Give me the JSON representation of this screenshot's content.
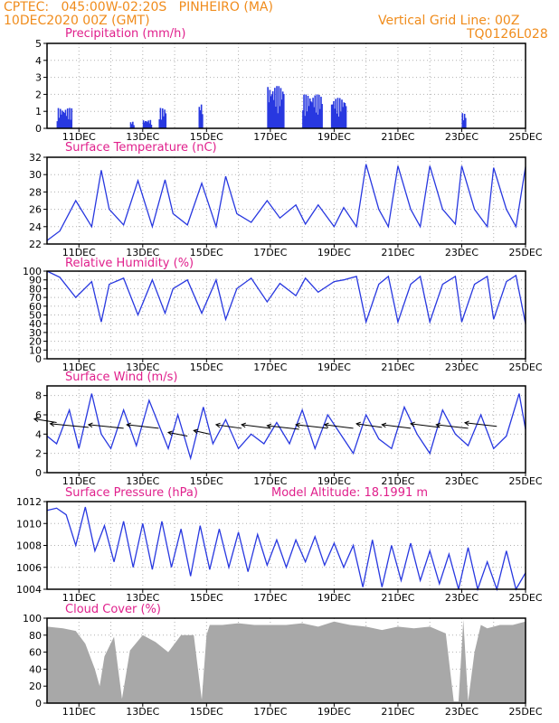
{
  "header": {
    "line1": "CPTEC:   045:00W-02:20S   PINHEIRO (MA)",
    "line2": "10DEC2020 00Z (GMT)",
    "right1": "Vertical Grid Line: 00Z",
    "right2": "TQ0126L028"
  },
  "colors": {
    "header": "#f08c1c",
    "title": "#e0208c",
    "series": "#2838e0",
    "cloud": "#a8a8a8",
    "grid": "#b0b0b0"
  },
  "chart_data": [
    {
      "type": "bar",
      "title": "Precipitation (mm/h)",
      "ylim": [
        0,
        5
      ],
      "yticks": [
        0,
        1,
        2,
        3,
        4,
        5
      ],
      "xticks": [
        "11DEC",
        "13DEC",
        "15DEC",
        "17DEC",
        "19DEC",
        "21DEC",
        "23DEC",
        "25DEC"
      ],
      "x_unit": "days since 10DEC2020 00Z",
      "bursts": [
        {
          "start": 0.3,
          "end": 0.75,
          "peak": 1.2
        },
        {
          "start": 2.6,
          "end": 2.7,
          "peak": 0.4
        },
        {
          "start": 3.0,
          "end": 3.25,
          "peak": 0.5
        },
        {
          "start": 3.5,
          "end": 3.7,
          "peak": 1.2
        },
        {
          "start": 4.75,
          "end": 4.85,
          "peak": 1.5
        },
        {
          "start": 6.9,
          "end": 7.4,
          "peak": 2.5
        },
        {
          "start": 8.0,
          "end": 8.6,
          "peak": 2.0
        },
        {
          "start": 8.9,
          "end": 9.35,
          "peak": 1.8
        },
        {
          "start": 13.0,
          "end": 13.1,
          "peak": 0.9
        }
      ]
    },
    {
      "type": "line",
      "title": "Surface Temperature (nC)",
      "ylim": [
        22,
        32
      ],
      "yticks": [
        22,
        24,
        26,
        28,
        30,
        32
      ],
      "xticks": [
        "11DEC",
        "13DEC",
        "15DEC",
        "17DEC",
        "19DEC",
        "21DEC",
        "23DEC",
        "25DEC"
      ],
      "x": [
        0,
        0.4,
        0.9,
        1.4,
        1.7,
        1.95,
        2.4,
        2.85,
        3.3,
        3.7,
        3.95,
        4.4,
        4.85,
        5.3,
        5.6,
        5.95,
        6.4,
        6.9,
        7.3,
        7.8,
        8.1,
        8.5,
        9.0,
        9.3,
        9.7,
        10.0,
        10.4,
        10.7,
        11.0,
        11.4,
        11.7,
        12.0,
        12.4,
        12.8,
        13.0,
        13.4,
        13.8,
        14.0,
        14.4,
        14.7,
        15.0
      ],
      "values": [
        22.4,
        23.5,
        27.0,
        24.0,
        30.5,
        26.0,
        24.2,
        29.3,
        24.0,
        29.4,
        25.5,
        24.2,
        29.0,
        24.0,
        29.8,
        25.5,
        24.5,
        27.0,
        25.0,
        26.5,
        24.3,
        26.5,
        24.0,
        26.2,
        24.0,
        31.2,
        26.0,
        24.0,
        31.0,
        26.0,
        24.0,
        31.0,
        26.0,
        24.3,
        31.0,
        26.0,
        24.0,
        30.8,
        26.0,
        24.0,
        30.9
      ]
    },
    {
      "type": "line",
      "title": "Relative Humidity (%)",
      "ylim": [
        0,
        100
      ],
      "yticks": [
        0,
        10,
        20,
        30,
        40,
        50,
        60,
        70,
        80,
        90,
        100
      ],
      "xticks": [
        "11DEC",
        "13DEC",
        "15DEC",
        "17DEC",
        "19DEC",
        "21DEC",
        "23DEC",
        "25DEC"
      ],
      "x": [
        0,
        0.4,
        0.9,
        1.4,
        1.7,
        1.95,
        2.4,
        2.85,
        3.3,
        3.7,
        3.95,
        4.4,
        4.85,
        5.3,
        5.6,
        5.95,
        6.4,
        6.9,
        7.3,
        7.8,
        8.1,
        8.5,
        9.0,
        9.3,
        9.7,
        10.0,
        10.4,
        10.7,
        11.0,
        11.4,
        11.7,
        12.0,
        12.4,
        12.8,
        13.0,
        13.4,
        13.8,
        14.0,
        14.4,
        14.7,
        15.0
      ],
      "values": [
        100,
        93,
        70,
        88,
        42,
        85,
        92,
        50,
        90,
        52,
        80,
        90,
        52,
        90,
        45,
        80,
        92,
        65,
        86,
        72,
        92,
        76,
        88,
        90,
        94,
        42,
        85,
        94,
        42,
        85,
        94,
        42,
        85,
        94,
        42,
        85,
        94,
        45,
        88,
        95,
        40
      ]
    },
    {
      "type": "line",
      "title": "Surface Wind (m/s)",
      "ylim": [
        0,
        9
      ],
      "yticks": [
        0,
        2,
        4,
        6,
        8
      ],
      "xticks": [
        "11DEC",
        "13DEC",
        "15DEC",
        "17DEC",
        "19DEC",
        "21DEC",
        "23DEC",
        "25DEC"
      ],
      "x": [
        0,
        0.3,
        0.7,
        1.0,
        1.4,
        1.7,
        2.0,
        2.4,
        2.8,
        3.2,
        3.5,
        3.8,
        4.1,
        4.5,
        4.9,
        5.2,
        5.6,
        6.0,
        6.4,
        6.8,
        7.2,
        7.6,
        8.0,
        8.4,
        8.8,
        9.2,
        9.6,
        10.0,
        10.4,
        10.8,
        11.2,
        11.6,
        12.0,
        12.4,
        12.8,
        13.2,
        13.6,
        14.0,
        14.4,
        14.8,
        15.0
      ],
      "values": [
        3.8,
        3.0,
        6.5,
        2.5,
        8.2,
        4.0,
        2.5,
        6.5,
        2.8,
        7.5,
        5.0,
        2.5,
        6.0,
        1.5,
        6.8,
        3.0,
        5.5,
        2.5,
        4.0,
        3.0,
        5.2,
        3.0,
        6.5,
        2.5,
        6.0,
        4.0,
        2.0,
        6.0,
        3.5,
        2.5,
        6.8,
        4.0,
        2.0,
        6.5,
        4.0,
        2.8,
        6.0,
        2.5,
        3.8,
        8.2,
        4.5
      ],
      "arrows": [
        [
          0.3,
          5.2,
          -0.7
        ],
        [
          1.3,
          4.7,
          -1.2
        ],
        [
          2.4,
          4.6,
          -1.1
        ],
        [
          3.5,
          4.6,
          -1.0
        ],
        [
          4.4,
          3.8,
          -0.6
        ],
        [
          5.1,
          4.0,
          -0.5
        ],
        [
          6.1,
          4.6,
          -0.8
        ],
        [
          7.0,
          4.6,
          -0.9
        ],
        [
          7.9,
          4.5,
          -1.0
        ],
        [
          8.8,
          4.6,
          -1.0
        ],
        [
          9.6,
          4.6,
          -0.9
        ],
        [
          10.5,
          4.7,
          -0.8
        ],
        [
          11.4,
          4.6,
          -0.9
        ],
        [
          12.3,
          4.7,
          -0.9
        ],
        [
          13.2,
          4.6,
          -1.0
        ],
        [
          14.1,
          4.8,
          -1.0
        ]
      ]
    },
    {
      "type": "line",
      "title": "Surface Pressure (hPa)",
      "annotation": "Model Altitude: 18.1991 m",
      "ylim": [
        1004,
        1012
      ],
      "yticks": [
        1004,
        1006,
        1008,
        1010,
        1012
      ],
      "xticks": [
        "11DEC",
        "13DEC",
        "15DEC",
        "17DEC",
        "19DEC",
        "21DEC",
        "23DEC",
        "25DEC"
      ],
      "x": [
        0,
        0.3,
        0.6,
        0.9,
        1.2,
        1.5,
        1.8,
        2.1,
        2.4,
        2.7,
        3.0,
        3.3,
        3.6,
        3.9,
        4.2,
        4.5,
        4.8,
        5.1,
        5.4,
        5.7,
        6.0,
        6.3,
        6.6,
        6.9,
        7.2,
        7.5,
        7.8,
        8.1,
        8.4,
        8.7,
        9.0,
        9.3,
        9.6,
        9.9,
        10.2,
        10.5,
        10.8,
        11.1,
        11.4,
        11.7,
        12.0,
        12.3,
        12.6,
        12.9,
        13.2,
        13.5,
        13.8,
        14.1,
        14.4,
        14.7,
        15.0
      ],
      "values": [
        1011.2,
        1011.4,
        1010.8,
        1008.0,
        1011.5,
        1007.5,
        1009.8,
        1006.5,
        1010.2,
        1006.0,
        1010.0,
        1005.8,
        1010.2,
        1006.0,
        1009.5,
        1005.2,
        1009.8,
        1005.8,
        1009.5,
        1006.0,
        1009.2,
        1005.6,
        1009.0,
        1006.2,
        1008.5,
        1006.0,
        1008.5,
        1006.5,
        1008.8,
        1006.2,
        1008.2,
        1006.0,
        1008.0,
        1004.2,
        1008.5,
        1004.2,
        1008.0,
        1004.8,
        1008.2,
        1004.8,
        1007.5,
        1004.5,
        1007.2,
        1004.0,
        1007.8,
        1004.0,
        1006.5,
        1004.0,
        1007.5,
        1003.5,
        1005.5
      ]
    },
    {
      "type": "area",
      "title": "Cloud Cover (%)",
      "ylim": [
        0,
        100
      ],
      "yticks": [
        0,
        20,
        40,
        60,
        80,
        100
      ],
      "xticks": [
        "11DEC",
        "13DEC",
        "15DEC",
        "17DEC",
        "19DEC",
        "21DEC",
        "23DEC",
        "25DEC"
      ],
      "x": [
        0,
        0.5,
        0.9,
        1.2,
        1.5,
        1.65,
        1.8,
        2.1,
        2.35,
        2.6,
        3.0,
        3.4,
        3.8,
        4.2,
        4.6,
        4.85,
        5.0,
        5.1,
        5.5,
        6.0,
        6.5,
        7.0,
        7.5,
        8.0,
        8.5,
        9.0,
        9.5,
        10.0,
        10.5,
        11.0,
        11.5,
        12.0,
        12.5,
        12.75,
        12.9,
        13.05,
        13.2,
        13.4,
        13.6,
        13.8,
        14.2,
        14.6,
        15.0
      ],
      "values": [
        90,
        88,
        85,
        70,
        40,
        20,
        55,
        78,
        5,
        62,
        80,
        72,
        60,
        80,
        80,
        4,
        80,
        92,
        92,
        94,
        92,
        92,
        92,
        94,
        90,
        96,
        92,
        90,
        86,
        90,
        88,
        90,
        82,
        2,
        2,
        98,
        2,
        60,
        92,
        88,
        92,
        92,
        96
      ]
    }
  ]
}
